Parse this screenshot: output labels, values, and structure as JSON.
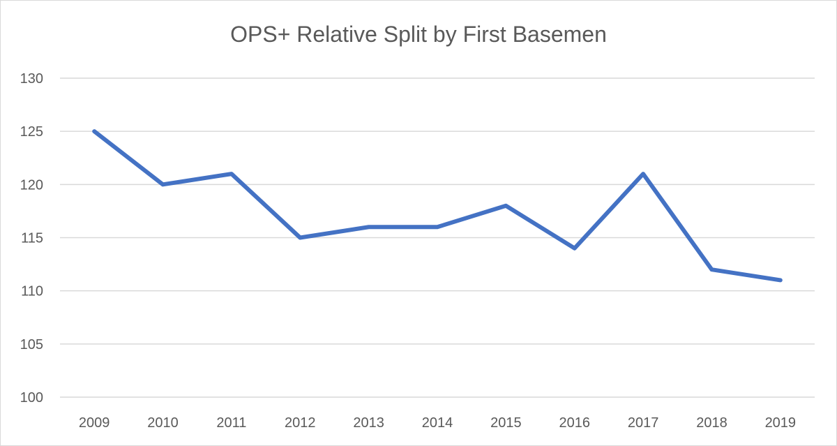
{
  "chart_data": {
    "type": "line",
    "title": "OPS+ Relative Split by First Basemen",
    "xlabel": "",
    "ylabel": "",
    "categories": [
      "2009",
      "2010",
      "2011",
      "2012",
      "2013",
      "2014",
      "2015",
      "2016",
      "2017",
      "2018",
      "2019"
    ],
    "values": [
      125,
      120,
      121,
      115,
      116,
      116,
      118,
      114,
      121,
      112,
      111
    ],
    "ylim": [
      100,
      130
    ],
    "yticks": [
      100,
      105,
      110,
      115,
      120,
      125,
      130
    ],
    "grid": true,
    "legend": "none",
    "colors": {
      "line": "#4472C4",
      "grid": "#d9d9d9",
      "text": "#595959"
    }
  }
}
